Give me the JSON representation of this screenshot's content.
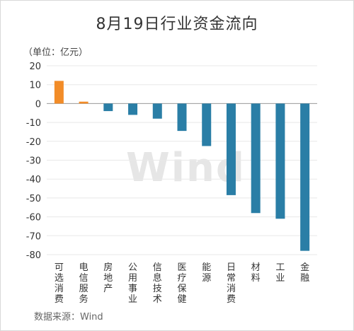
{
  "title": "8月19日行业资金流向",
  "unit_label": "（单位：亿元）",
  "source": "数据来源：Wind",
  "watermark": "Wind",
  "colors": {
    "positive": "#F28C28",
    "negative": "#2A7EA6",
    "grid": "#e8e8e8",
    "axis": "#999999"
  },
  "chart_data": {
    "type": "bar",
    "title": "8月19日行业资金流向",
    "xlabel": "",
    "ylabel": "（单位：亿元）",
    "ylim": [
      -80,
      20
    ],
    "yticks": [
      20,
      10,
      0,
      -10,
      -20,
      -30,
      -40,
      -50,
      -60,
      -70,
      -80
    ],
    "grid": true,
    "categories": [
      "可选消费",
      "电信服务",
      "房地产",
      "公用事业",
      "信息技术",
      "医疗保健",
      "能源",
      "日常消费",
      "材料",
      "工业",
      "金融"
    ],
    "values": [
      12,
      1,
      -4,
      -6,
      -8,
      -14.5,
      -22.5,
      -48.5,
      -58,
      -61,
      -78
    ]
  }
}
